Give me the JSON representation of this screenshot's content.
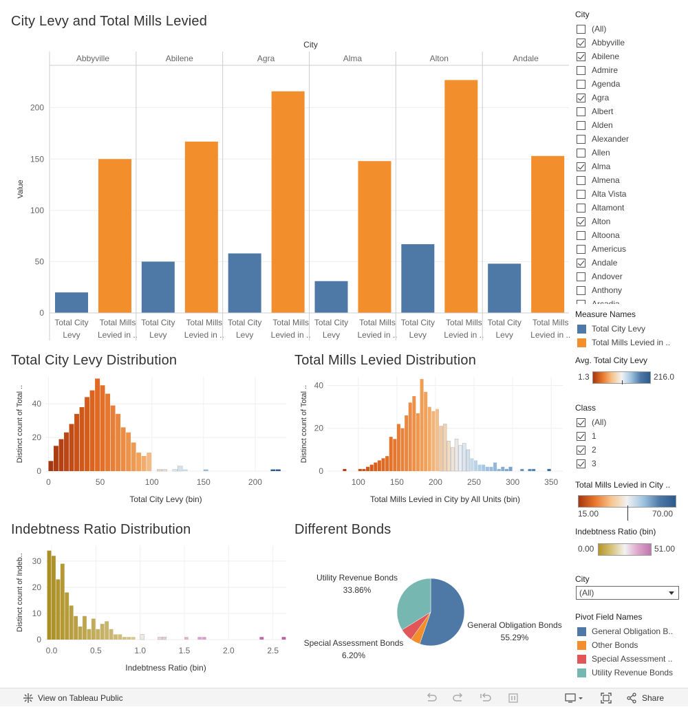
{
  "titles": {
    "main": "City Levy and Total Mills Levied",
    "levy_dist": "Total City Levy Distribution",
    "mills_dist": "Total Mills Levied Distribution",
    "indebt_dist": "Indebtness Ratio Distribution",
    "bonds": "Different Bonds"
  },
  "chart_data": [
    {
      "type": "bar",
      "title": "City Levy and Total Mills Levied",
      "column_header": "City",
      "ylabel": "Value",
      "ylim": [
        0,
        240
      ],
      "yticks": [
        0,
        50,
        100,
        150,
        200
      ],
      "cities": [
        "Abbyville",
        "Abilene",
        "Agra",
        "Alma",
        "Alton",
        "Andale"
      ],
      "measure_labels": [
        [
          "Total City",
          "Levy"
        ],
        [
          "Total Mills",
          "Levied in .."
        ]
      ],
      "series": [
        {
          "name": "Total City Levy",
          "color": "#4e79a7",
          "values": [
            20,
            50,
            58,
            31,
            67,
            48
          ]
        },
        {
          "name": "Total Mills Levied in City by All Units",
          "color": "#f28e2b",
          "values": [
            150,
            167,
            216,
            148,
            227,
            153
          ]
        }
      ]
    },
    {
      "type": "bar",
      "title": "Total City Levy Distribution",
      "xlabel": "Total City Levy (bin)",
      "ylabel": "Distinct count of Total ..",
      "xlim": [
        -3,
        230
      ],
      "ylim": [
        0,
        56
      ],
      "xticks": [
        0,
        50,
        100,
        150,
        200
      ],
      "yticks": [
        0,
        20,
        40
      ],
      "bin_width": 5,
      "bins": [
        0,
        5,
        10,
        15,
        20,
        25,
        30,
        35,
        40,
        45,
        50,
        55,
        60,
        65,
        70,
        75,
        80,
        85,
        90,
        95,
        100,
        105,
        110,
        115,
        120,
        125,
        130,
        135,
        140,
        145,
        150,
        155,
        160,
        165,
        170,
        175,
        180,
        185,
        190,
        195,
        200,
        205,
        210,
        215,
        220
      ],
      "values": [
        6,
        15,
        19,
        23,
        28,
        34,
        38,
        44,
        48,
        55,
        51,
        46,
        39,
        34,
        26,
        23,
        17,
        11,
        9,
        11,
        0,
        1,
        1,
        0,
        1,
        3,
        1,
        0,
        0,
        0,
        1,
        0,
        0,
        0,
        0,
        0,
        0,
        0,
        0,
        0,
        0,
        0,
        0,
        1,
        1
      ]
    },
    {
      "type": "bar",
      "title": "Total Mills Levied Distribution",
      "xlabel": "Total Mills Levied in City by All Units (bin)",
      "ylabel": "Distinct count of Total ..",
      "xlim": [
        60,
        365
      ],
      "ylim": [
        0,
        44
      ],
      "xticks": [
        100,
        150,
        200,
        250,
        300,
        350
      ],
      "yticks": [
        0,
        20,
        40
      ],
      "bin_width": 5,
      "bins": [
        70,
        75,
        80,
        85,
        90,
        95,
        100,
        105,
        110,
        115,
        120,
        125,
        130,
        135,
        140,
        145,
        150,
        155,
        160,
        165,
        170,
        175,
        180,
        185,
        190,
        195,
        200,
        205,
        210,
        215,
        220,
        225,
        230,
        235,
        240,
        245,
        250,
        255,
        260,
        265,
        270,
        275,
        280,
        285,
        290,
        295,
        300,
        305,
        310,
        315,
        320,
        325,
        330,
        335,
        340,
        345,
        350
      ],
      "values": [
        0,
        0,
        1,
        0,
        0,
        0,
        1,
        1,
        2,
        3,
        4,
        5,
        6,
        7,
        16,
        15,
        22,
        20,
        26,
        32,
        35,
        27,
        43,
        37,
        30,
        28,
        29,
        21,
        22,
        14,
        11,
        15,
        12,
        13,
        10,
        6,
        5,
        3,
        3,
        2,
        2,
        4,
        1,
        2,
        1,
        2,
        0,
        0,
        1,
        0,
        1,
        1,
        0,
        0,
        0,
        1,
        0
      ]
    },
    {
      "type": "bar",
      "title": "Indebtness Ratio Distribution",
      "xlabel": "Indebtness Ratio (bin)",
      "ylabel": "Distinct count of Indeb..",
      "xlim": [
        -0.07,
        2.65
      ],
      "ylim": [
        0,
        36
      ],
      "xticks": [
        0.0,
        0.5,
        1.0,
        1.5,
        2.0,
        2.5
      ],
      "yticks": [
        0,
        10,
        20,
        30
      ],
      "bin_width": 0.05,
      "values_by_bin": [
        [
          -0.05,
          34
        ],
        [
          0.0,
          32
        ],
        [
          0.05,
          23
        ],
        [
          0.1,
          29
        ],
        [
          0.15,
          18
        ],
        [
          0.2,
          13
        ],
        [
          0.25,
          9
        ],
        [
          0.3,
          5
        ],
        [
          0.35,
          9
        ],
        [
          0.4,
          4
        ],
        [
          0.45,
          8
        ],
        [
          0.5,
          4
        ],
        [
          0.55,
          6
        ],
        [
          0.6,
          7
        ],
        [
          0.65,
          4
        ],
        [
          0.7,
          2
        ],
        [
          0.75,
          2
        ],
        [
          0.8,
          1
        ],
        [
          0.85,
          1
        ],
        [
          0.9,
          1
        ],
        [
          1.0,
          2
        ],
        [
          1.2,
          1
        ],
        [
          1.25,
          1
        ],
        [
          1.5,
          1
        ],
        [
          1.65,
          1
        ],
        [
          1.7,
          1
        ],
        [
          2.35,
          1
        ],
        [
          2.6,
          1
        ]
      ]
    },
    {
      "type": "pie",
      "title": "Different Bonds",
      "categories": [
        "General Obligation Bonds",
        "Other Bonds",
        "Special Assessment Bonds",
        "Utility Revenue Bonds"
      ],
      "values": [
        55.29,
        4.65,
        6.2,
        33.86
      ],
      "labels": [
        {
          "name": "General Obligation Bonds",
          "pct": "55.29%"
        },
        {
          "name": "Special Assessment Bonds",
          "pct": "6.20%"
        },
        {
          "name": "Utility Revenue Bonds",
          "pct": "33.86%"
        }
      ],
      "colors": [
        "#4e79a7",
        "#f28e2b",
        "#e15759",
        "#76b7b2"
      ]
    }
  ],
  "sidebar": {
    "city_filter": {
      "title": "City",
      "items": [
        {
          "label": "(All)",
          "checked": false
        },
        {
          "label": "Abbyville",
          "checked": true
        },
        {
          "label": "Abilene",
          "checked": true
        },
        {
          "label": "Admire",
          "checked": false
        },
        {
          "label": "Agenda",
          "checked": false
        },
        {
          "label": "Agra",
          "checked": true
        },
        {
          "label": "Albert",
          "checked": false
        },
        {
          "label": "Alden",
          "checked": false
        },
        {
          "label": "Alexander",
          "checked": false
        },
        {
          "label": "Allen",
          "checked": false
        },
        {
          "label": "Alma",
          "checked": true
        },
        {
          "label": "Almena",
          "checked": false
        },
        {
          "label": "Alta Vista",
          "checked": false
        },
        {
          "label": "Altamont",
          "checked": false
        },
        {
          "label": "Alton",
          "checked": true
        },
        {
          "label": "Altoona",
          "checked": false
        },
        {
          "label": "Americus",
          "checked": false
        },
        {
          "label": "Andale",
          "checked": true
        },
        {
          "label": "Andover",
          "checked": false
        },
        {
          "label": "Anthony",
          "checked": false
        },
        {
          "label": "Arcadia",
          "checked": false
        }
      ]
    },
    "measure_names": {
      "title": "Measure Names",
      "items": [
        {
          "label": "Total City Levy",
          "color": "#4e79a7"
        },
        {
          "label": "Total Mills Levied in ..",
          "color": "#f28e2b"
        }
      ]
    },
    "avg_levy": {
      "title": "Avg. Total City Levy",
      "min": "1.3",
      "max": "216.0"
    },
    "class_filter": {
      "title": "Class",
      "items": [
        {
          "label": "(All)",
          "checked": true
        },
        {
          "label": "1",
          "checked": true
        },
        {
          "label": "2",
          "checked": true
        },
        {
          "label": "3",
          "checked": true
        }
      ]
    },
    "mills_legend": {
      "title": "Total Mills Levied in City ..",
      "min": "15.00",
      "max": "70.00"
    },
    "indebt_legend": {
      "title": "Indebtness Ratio (bin)",
      "min": "0.00",
      "max": "51.00"
    },
    "city_dropdown": {
      "title": "City",
      "value": "(All)"
    },
    "pivot": {
      "title": "Pivot Field Names",
      "items": [
        {
          "label": "General Obligation B..",
          "color": "#4e79a7"
        },
        {
          "label": "Other Bonds",
          "color": "#f28e2b"
        },
        {
          "label": "Special Assessment ..",
          "color": "#e15759"
        },
        {
          "label": "Utility Revenue Bonds",
          "color": "#76b7b2"
        }
      ]
    }
  },
  "toolbar": {
    "view_label": "View on Tableau Public",
    "share_label": "Share"
  }
}
